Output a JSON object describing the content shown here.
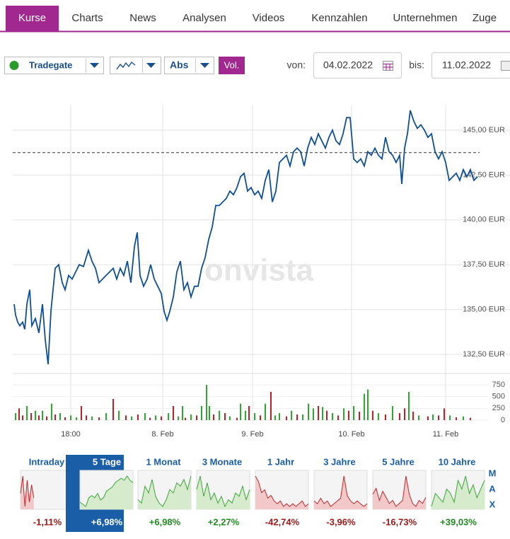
{
  "tabs": [
    "Kurse",
    "Charts",
    "News",
    "Analysen",
    "Videos",
    "Kennzahlen",
    "Unternehmen",
    "Zuge"
  ],
  "controls": {
    "exchange": "Tradegate",
    "scale": "Abs",
    "volume": "Vol.",
    "from_label": "von:",
    "from": "04.02.2022",
    "to_label": "bis:",
    "to": "11.02.2022"
  },
  "watermark": "onvista",
  "chart_data": [
    {
      "type": "line",
      "color": "#0e4f94",
      "grid": true,
      "x": [
        0.2,
        0.4,
        0.7,
        1.0,
        1.4,
        1.7,
        2.0,
        2.4,
        2.7,
        3.2,
        3.7,
        4.2,
        4.6,
        5.0,
        5.4,
        6.0,
        6.5,
        7.0,
        7.4,
        7.9,
        8.4,
        8.9,
        9.4,
        10.0,
        10.7,
        11.2,
        11.7,
        12.2,
        12.7,
        13.2,
        13.7,
        14.2,
        14.7,
        15.2,
        15.7,
        16.2,
        16.7,
        17.2,
        17.6,
        18.0,
        18.5,
        19.0,
        19.5,
        20.0,
        20.5,
        21.0,
        21.4,
        21.8,
        22.2,
        22.7,
        23.2,
        23.7,
        24.2,
        24.7,
        25.2,
        25.7,
        26.2,
        26.7,
        27.2,
        27.7,
        28.2,
        28.7,
        29.2,
        29.7,
        30.2,
        30.7,
        31.2,
        31.7,
        32.2,
        32.7,
        33.2,
        33.7,
        34.2,
        34.7,
        35.2,
        35.7,
        36.2,
        36.7,
        37.2,
        37.7,
        38.2,
        38.7,
        39.2,
        39.7,
        40.2,
        40.7,
        41.2,
        41.7,
        42.2,
        42.7,
        43.2,
        43.7,
        44.2,
        44.7,
        45.2,
        45.7,
        46.2,
        46.7,
        47.2,
        47.7,
        48.2,
        48.7,
        49.2,
        49.7,
        50.2,
        50.7,
        51.2,
        51.7,
        52.2,
        52.7,
        53.2,
        53.7,
        54.2,
        54.7,
        55.0,
        55.4,
        55.8,
        56.2,
        56.7,
        57.2,
        57.7,
        58.2,
        58.7,
        59.2,
        59.7,
        60.2,
        60.7,
        61.2,
        61.7,
        62.2,
        62.7,
        63.2,
        63.7,
        64.2,
        64.7,
        65.2,
        65.7
      ],
      "values": [
        135.3,
        134.7,
        134.3,
        134.1,
        134.3,
        133.9,
        135.3,
        136.1,
        134.1,
        134.5,
        133.7,
        135.3,
        133.3,
        131.95,
        134.9,
        137.3,
        137.5,
        136.5,
        136.1,
        136.9,
        136.7,
        137.1,
        137.5,
        137.4,
        138.3,
        137.7,
        137.3,
        136.5,
        136.7,
        136.9,
        137.1,
        137.3,
        136.7,
        137.3,
        136.9,
        137.7,
        136.5,
        138.5,
        139.3,
        136.9,
        136.3,
        136.7,
        137.5,
        136.7,
        136.3,
        135.9,
        134.9,
        134.4,
        134.9,
        135.7,
        137.1,
        137.7,
        136.1,
        136.5,
        135.7,
        136.3,
        136.3,
        137.3,
        137.9,
        138.9,
        139.6,
        140.8,
        140.8,
        141.0,
        141.2,
        141.6,
        141.4,
        141.8,
        142.4,
        142.6,
        141.6,
        141.8,
        141.4,
        141.6,
        141.2,
        142.2,
        142.8,
        141.0,
        141.6,
        143.2,
        143.4,
        143.6,
        143.0,
        143.8,
        144.0,
        143.8,
        143.0,
        144.0,
        144.6,
        144.2,
        144.8,
        144.4,
        144.0,
        144.6,
        145.0,
        144.4,
        144.2,
        144.8,
        145.7,
        145.7,
        143.4,
        143.2,
        143.4,
        143.0,
        143.8,
        143.6,
        144.0,
        143.6,
        143.4,
        144.6,
        143.8,
        143.6,
        143.2,
        143.6,
        142.0,
        144.0,
        144.8,
        146.1,
        145.5,
        145.1,
        145.3,
        145.0,
        144.6,
        144.8,
        143.8,
        143.4,
        143.8,
        143.2,
        142.2,
        142.4,
        142.6,
        142.2,
        142.8,
        142.4,
        142.8,
        142.2,
        142.4
      ],
      "reference_value": 143.75,
      "xlim": [
        0,
        66
      ],
      "xticks": [
        {
          "value": 8.2,
          "label": "18:00"
        },
        {
          "value": 21.2,
          "label": "8. Feb"
        },
        {
          "value": 33.9,
          "label": "9. Feb"
        },
        {
          "value": 47.9,
          "label": "10. Feb"
        },
        {
          "value": 61.2,
          "label": "11. Feb"
        }
      ],
      "ylim": [
        131.5,
        146.4
      ],
      "yticks": [
        {
          "value": 132.5,
          "label": "132,50 EUR"
        },
        {
          "value": 135,
          "label": "135,00 EUR"
        },
        {
          "value": 137.5,
          "label": "137,50 EUR"
        },
        {
          "value": 140,
          "label": "140,00 EUR"
        },
        {
          "value": 142.5,
          "label": "142,50 EUR"
        },
        {
          "value": 145,
          "label": "145,00 EUR"
        }
      ]
    },
    {
      "type": "bar",
      "x": [
        0.4,
        0.9,
        1.4,
        2.0,
        2.6,
        3.2,
        3.7,
        4.2,
        4.8,
        5.5,
        6.0,
        6.7,
        7.4,
        8.2,
        9.0,
        9.7,
        10.4,
        11.2,
        12.2,
        13.2,
        14.2,
        15.0,
        16.0,
        16.8,
        17.7,
        18.7,
        19.4,
        20.2,
        21.0,
        22.0,
        22.7,
        23.4,
        24.0,
        24.4,
        25.2,
        26.0,
        26.7,
        27.4,
        27.8,
        28.4,
        29.2,
        30.0,
        30.7,
        31.7,
        32.2,
        32.9,
        33.4,
        34.2,
        35.0,
        35.7,
        36.5,
        37.1,
        37.7,
        38.7,
        39.4,
        40.2,
        41.0,
        41.8,
        42.5,
        43.2,
        43.8,
        44.4,
        45.2,
        46.0,
        46.8,
        47.5,
        48.2,
        49.0,
        49.7,
        50.2,
        50.9,
        51.7,
        52.7,
        53.7,
        54.7,
        55.4,
        56.0,
        56.6,
        57.4,
        58.7,
        59.4,
        60.2,
        61.0,
        61.8,
        62.7,
        63.7,
        64.7
      ],
      "values": [
        150,
        250,
        100,
        300,
        150,
        200,
        100,
        200,
        80,
        350,
        120,
        150,
        60,
        100,
        60,
        300,
        100,
        80,
        60,
        150,
        450,
        200,
        100,
        80,
        120,
        150,
        50,
        100,
        80,
        150,
        300,
        80,
        300,
        50,
        120,
        100,
        300,
        750,
        300,
        120,
        200,
        150,
        80,
        50,
        350,
        200,
        300,
        150,
        100,
        350,
        600,
        100,
        150,
        80,
        200,
        120,
        120,
        350,
        250,
        300,
        280,
        200,
        150,
        100,
        250,
        200,
        300,
        180,
        560,
        650,
        200,
        150,
        120,
        300,
        150,
        250,
        600,
        180,
        100,
        80,
        120,
        100,
        250,
        100,
        60,
        80,
        50
      ],
      "colors": [
        "#2daa2d",
        "#c01f26",
        "#c01f26",
        "#2daa2d",
        "#c01f26",
        "#2daa2d",
        "#c01f26",
        "#2daa2d",
        "#c01f26",
        "#2daa2d",
        "#c01f26",
        "#2daa2d",
        "#c01f26",
        "#2daa2d",
        "#2daa2d",
        "#c01f26",
        "#c01f26",
        "#2daa2d",
        "#c01f26",
        "#2daa2d",
        "#c01f26",
        "#2daa2d",
        "#c01f26",
        "#2daa2d",
        "#c01f26",
        "#2daa2d",
        "#c01f26",
        "#2daa2d",
        "#c01f26",
        "#2daa2d",
        "#c01f26",
        "#2daa2d",
        "#2daa2d",
        "#c01f26",
        "#2daa2d",
        "#c01f26",
        "#2daa2d",
        "#2daa2d",
        "#2daa2d",
        "#c01f26",
        "#2daa2d",
        "#c01f26",
        "#2daa2d",
        "#c01f26",
        "#2daa2d",
        "#2daa2d",
        "#c01f26",
        "#2daa2d",
        "#c01f26",
        "#2daa2d",
        "#c01f26",
        "#2daa2d",
        "#2daa2d",
        "#c01f26",
        "#2daa2d",
        "#c01f26",
        "#2daa2d",
        "#2daa2d",
        "#2daa2d",
        "#c01f26",
        "#2daa2d",
        "#c01f26",
        "#2daa2d",
        "#c01f26",
        "#2daa2d",
        "#c01f26",
        "#2daa2d",
        "#c01f26",
        "#2daa2d",
        "#2daa2d",
        "#c01f26",
        "#2daa2d",
        "#c01f26",
        "#2daa2d",
        "#c01f26",
        "#c01f26",
        "#2daa2d",
        "#c01f26",
        "#2daa2d",
        "#c01f26",
        "#2daa2d",
        "#c01f26",
        "#c01f26",
        "#2daa2d",
        "#c01f26",
        "#2daa2d",
        "#c01f26"
      ],
      "xlim": [
        0,
        66
      ],
      "ylim": [
        0,
        950
      ],
      "yticks": [
        0,
        250,
        500,
        750
      ]
    }
  ],
  "tiles": [
    {
      "label": "Intraday",
      "change": "-1,11%",
      "trend": "down",
      "spark": [
        5,
        9,
        2,
        8,
        3,
        7,
        4,
        null,
        null,
        null,
        null,
        null,
        null,
        null,
        null,
        null,
        null,
        null,
        null,
        null,
        null,
        null,
        null,
        null,
        null
      ]
    },
    {
      "label": "5 Tage",
      "change": "+6,98%",
      "trend": "up",
      "active": true,
      "spark": [
        3,
        2,
        1,
        5,
        6,
        5,
        7,
        4,
        5,
        8,
        9,
        10,
        12,
        13,
        14,
        13,
        15,
        13,
        12
      ]
    },
    {
      "label": "1 Monat",
      "change": "+6,98%",
      "trend": "up",
      "spark": [
        6,
        5,
        10,
        8,
        12,
        7,
        5,
        4,
        6,
        9,
        8,
        11,
        10,
        12,
        9,
        13
      ]
    },
    {
      "label": "3 Monate",
      "change": "+2,27%",
      "trend": "up",
      "spark": [
        10,
        14,
        8,
        12,
        7,
        9,
        6,
        8,
        5,
        7,
        6,
        9,
        8,
        11,
        7,
        10
      ]
    },
    {
      "label": "1 Jahr",
      "change": "-42,74%",
      "trend": "down",
      "spark": [
        14,
        12,
        8,
        9,
        6,
        7,
        5,
        4,
        5,
        3,
        4,
        3,
        4,
        3,
        4,
        5,
        3,
        4
      ]
    },
    {
      "label": "3 Jahre",
      "change": "-3,96%",
      "trend": "down",
      "spark": [
        5,
        4,
        6,
        4,
        5,
        3,
        4,
        5,
        6,
        14,
        7,
        5,
        4,
        5,
        4,
        3,
        4
      ]
    },
    {
      "label": "5 Jahre",
      "change": "-16,73%",
      "trend": "down",
      "spark": [
        8,
        10,
        6,
        9,
        7,
        5,
        6,
        4,
        5,
        6,
        14,
        8,
        5,
        4,
        6,
        5,
        7
      ]
    },
    {
      "label": "10 Jahre",
      "change": "+39,03%",
      "trend": "up",
      "spark": [
        5,
        8,
        7,
        6,
        9,
        8,
        6,
        11,
        9,
        12,
        8,
        10,
        7,
        9,
        11
      ]
    }
  ],
  "max_label": "MAX"
}
